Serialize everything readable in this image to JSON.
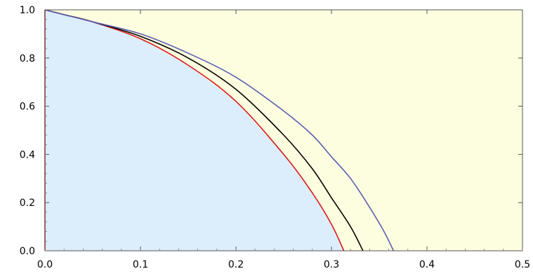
{
  "chart_data": {
    "type": "area",
    "title": "",
    "xlabel": "",
    "ylabel": "",
    "xlim": [
      0,
      0.5
    ],
    "ylim": [
      0,
      1
    ],
    "x_ticks": [
      0,
      0.1,
      0.2,
      0.3,
      0.4,
      0.5
    ],
    "x_tick_labels": [
      "0.0",
      "0.1",
      "0.2",
      "0.3",
      "0.4",
      "0.5"
    ],
    "y_ticks": [
      0,
      0.2,
      0.4,
      0.6,
      0.8,
      1.0
    ],
    "y_tick_labels": [
      "0.0",
      "0.2",
      "0.4",
      "0.6",
      "0.8",
      "1.0"
    ],
    "grid": false,
    "legend": "none",
    "region_colors": {
      "inner_fill": "#dcedfc",
      "outer_fill": "#fdfde0"
    },
    "series": [
      {
        "color": "#d7191c",
        "x": [
          0.0,
          0.02,
          0.05,
          0.1,
          0.15,
          0.2,
          0.25,
          0.28,
          0.3,
          0.313
        ],
        "y": [
          1.0,
          0.98,
          0.95,
          0.88,
          0.77,
          0.62,
          0.4,
          0.24,
          0.11,
          0.0
        ],
        "vertical_segment_at_x": 0.0
      },
      {
        "color": "#000000",
        "x": [
          0.0,
          0.02,
          0.05,
          0.1,
          0.15,
          0.2,
          0.25,
          0.28,
          0.3,
          0.32,
          0.333
        ],
        "y": [
          1.0,
          0.98,
          0.95,
          0.89,
          0.8,
          0.67,
          0.48,
          0.34,
          0.22,
          0.1,
          0.0
        ]
      },
      {
        "color": "#5b5fb0",
        "x": [
          0.0,
          0.02,
          0.05,
          0.1,
          0.15,
          0.2,
          0.25,
          0.28,
          0.3,
          0.32,
          0.34,
          0.355,
          0.365
        ],
        "y": [
          1.0,
          0.98,
          0.95,
          0.9,
          0.82,
          0.72,
          0.58,
          0.48,
          0.39,
          0.3,
          0.18,
          0.08,
          0.0
        ]
      }
    ]
  }
}
